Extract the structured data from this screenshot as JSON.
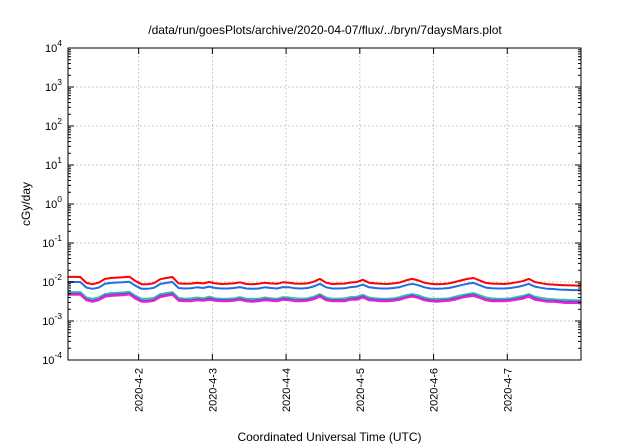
{
  "chart_data": {
    "type": "line",
    "title": "/data/run/goesPlots/archive/2020-04-07/flux/../bryn/7daysMars.plot",
    "xlabel": "Coordinated Universal Time (UTC)",
    "ylabel": "cGy/day",
    "yscale": "log",
    "ylim": [
      0.0001,
      10000
    ],
    "yticks": [
      {
        "value": 10000,
        "base": "10",
        "exp": "4"
      },
      {
        "value": 1000,
        "base": "10",
        "exp": "3"
      },
      {
        "value": 100,
        "base": "10",
        "exp": "2"
      },
      {
        "value": 10,
        "base": "10",
        "exp": "1"
      },
      {
        "value": 1,
        "base": "10",
        "exp": "0"
      },
      {
        "value": 0.1,
        "base": "10",
        "exp": "-1"
      },
      {
        "value": 0.01,
        "base": "10",
        "exp": "-2"
      },
      {
        "value": 0.001,
        "base": "10",
        "exp": "-3"
      },
      {
        "value": 0.0001,
        "base": "10",
        "exp": "-4"
      }
    ],
    "xlim": [
      "2020-04-01T01:00",
      "2020-04-08T00:00"
    ],
    "xticks": [
      "2020-4-2",
      "2020-4-3",
      "2020-4-4",
      "2020-4-5",
      "2020-4-6",
      "2020-4-7"
    ],
    "grid": true,
    "legend": "none",
    "x": [
      "2020-04-01T01:00",
      "2020-04-01T03:00",
      "2020-04-01T05:00",
      "2020-04-01T07:00",
      "2020-04-01T09:00",
      "2020-04-01T11:00",
      "2020-04-01T13:00",
      "2020-04-01T15:00",
      "2020-04-01T17:00",
      "2020-04-01T19:00",
      "2020-04-01T21:00",
      "2020-04-01T23:00",
      "2020-04-02T01:00",
      "2020-04-02T03:00",
      "2020-04-02T05:00",
      "2020-04-02T07:00",
      "2020-04-02T09:00",
      "2020-04-02T11:00",
      "2020-04-02T13:00",
      "2020-04-02T15:00",
      "2020-04-02T17:00",
      "2020-04-02T19:00",
      "2020-04-02T21:00",
      "2020-04-02T23:00",
      "2020-04-03T01:00",
      "2020-04-03T03:00",
      "2020-04-03T05:00",
      "2020-04-03T07:00",
      "2020-04-03T09:00",
      "2020-04-03T11:00",
      "2020-04-03T13:00",
      "2020-04-03T15:00",
      "2020-04-03T17:00",
      "2020-04-03T19:00",
      "2020-04-03T21:00",
      "2020-04-03T23:00",
      "2020-04-04T01:00",
      "2020-04-04T03:00",
      "2020-04-04T05:00",
      "2020-04-04T07:00",
      "2020-04-04T09:00",
      "2020-04-04T11:00",
      "2020-04-04T13:00",
      "2020-04-04T15:00",
      "2020-04-04T17:00",
      "2020-04-04T19:00",
      "2020-04-04T21:00",
      "2020-04-04T23:00",
      "2020-04-05T01:00",
      "2020-04-05T03:00",
      "2020-04-05T05:00",
      "2020-04-05T07:00",
      "2020-04-05T09:00",
      "2020-04-05T11:00",
      "2020-04-05T13:00",
      "2020-04-05T15:00",
      "2020-04-05T17:00",
      "2020-04-05T19:00",
      "2020-04-05T21:00",
      "2020-04-05T23:00",
      "2020-04-06T01:00",
      "2020-04-06T03:00",
      "2020-04-06T05:00",
      "2020-04-06T07:00",
      "2020-04-06T09:00",
      "2020-04-06T11:00",
      "2020-04-06T13:00",
      "2020-04-06T15:00",
      "2020-04-06T17:00",
      "2020-04-06T19:00",
      "2020-04-06T21:00",
      "2020-04-06T23:00",
      "2020-04-07T01:00",
      "2020-04-07T03:00",
      "2020-04-07T05:00",
      "2020-04-07T07:00",
      "2020-04-07T09:00",
      "2020-04-07T11:00",
      "2020-04-07T13:00",
      "2020-04-07T15:00",
      "2020-04-07T17:00",
      "2020-04-07T19:00",
      "2020-04-07T21:00",
      "2020-04-07T23:00",
      "2020-04-08T00:00"
    ],
    "series": [
      {
        "color": "#ff0000",
        "values": [
          0.0135,
          0.0135,
          0.0134,
          0.0095,
          0.0088,
          0.0096,
          0.012,
          0.0127,
          0.013,
          0.0133,
          0.0137,
          0.0105,
          0.0088,
          0.0088,
          0.0093,
          0.0118,
          0.0127,
          0.0134,
          0.0092,
          0.009,
          0.0091,
          0.0096,
          0.0092,
          0.01,
          0.0092,
          0.0089,
          0.009,
          0.0092,
          0.0098,
          0.0089,
          0.0088,
          0.009,
          0.0096,
          0.0092,
          0.009,
          0.0098,
          0.0096,
          0.0091,
          0.009,
          0.0092,
          0.0102,
          0.012,
          0.0096,
          0.0089,
          0.009,
          0.0091,
          0.0097,
          0.01,
          0.0114,
          0.0096,
          0.0092,
          0.009,
          0.0089,
          0.0092,
          0.0097,
          0.011,
          0.012,
          0.011,
          0.0096,
          0.009,
          0.0088,
          0.0089,
          0.0092,
          0.01,
          0.011,
          0.012,
          0.0127,
          0.011,
          0.0095,
          0.0091,
          0.009,
          0.0089,
          0.0092,
          0.0098,
          0.0105,
          0.012,
          0.01,
          0.0093,
          0.0088,
          0.0086,
          0.0084,
          0.0083,
          0.0082,
          0.0081,
          0.008
        ]
      },
      {
        "color": "#1f6fe0",
        "values": [
          0.01,
          0.01,
          0.01,
          0.0072,
          0.0067,
          0.0072,
          0.009,
          0.0095,
          0.0097,
          0.0099,
          0.0101,
          0.008,
          0.0067,
          0.0067,
          0.0071,
          0.0089,
          0.0095,
          0.01,
          0.007,
          0.0068,
          0.0069,
          0.0073,
          0.007,
          0.0076,
          0.007,
          0.0068,
          0.0068,
          0.007,
          0.0074,
          0.0068,
          0.0067,
          0.0068,
          0.0073,
          0.007,
          0.0068,
          0.0074,
          0.0073,
          0.0069,
          0.0068,
          0.007,
          0.0077,
          0.009,
          0.0073,
          0.0068,
          0.0068,
          0.0069,
          0.0074,
          0.0076,
          0.0086,
          0.0073,
          0.007,
          0.0068,
          0.0068,
          0.007,
          0.0074,
          0.0083,
          0.009,
          0.0083,
          0.0073,
          0.0068,
          0.0067,
          0.0068,
          0.007,
          0.0076,
          0.0083,
          0.009,
          0.0095,
          0.0083,
          0.0072,
          0.0069,
          0.0068,
          0.0068,
          0.007,
          0.0074,
          0.008,
          0.009,
          0.0076,
          0.0071,
          0.0067,
          0.0066,
          0.0064,
          0.0063,
          0.0062,
          0.0062,
          0.0061
        ]
      },
      {
        "color": "#2ec4a8",
        "values": [
          0.0055,
          0.0055,
          0.0055,
          0.004,
          0.0037,
          0.004,
          0.0049,
          0.0052,
          0.0053,
          0.0054,
          0.0056,
          0.0044,
          0.0037,
          0.0037,
          0.0039,
          0.0049,
          0.0052,
          0.0055,
          0.0039,
          0.0037,
          0.0038,
          0.004,
          0.0038,
          0.0042,
          0.0038,
          0.0037,
          0.0037,
          0.0038,
          0.0041,
          0.0037,
          0.0037,
          0.0037,
          0.004,
          0.0038,
          0.0037,
          0.0041,
          0.004,
          0.0038,
          0.0037,
          0.0038,
          0.0042,
          0.0049,
          0.004,
          0.0037,
          0.0037,
          0.0038,
          0.0041,
          0.0042,
          0.0047,
          0.004,
          0.0038,
          0.0037,
          0.0037,
          0.0038,
          0.0041,
          0.0046,
          0.0049,
          0.0046,
          0.004,
          0.0037,
          0.0037,
          0.0037,
          0.0038,
          0.0042,
          0.0046,
          0.0049,
          0.0052,
          0.0046,
          0.004,
          0.0038,
          0.0037,
          0.0037,
          0.0038,
          0.0041,
          0.0044,
          0.0049,
          0.0042,
          0.0039,
          0.0037,
          0.0036,
          0.0035,
          0.0035,
          0.0034,
          0.0034,
          0.0034
        ]
      },
      {
        "color": "#7a3fd6",
        "values": [
          0.005,
          0.005,
          0.005,
          0.0036,
          0.0033,
          0.0036,
          0.0045,
          0.0047,
          0.0048,
          0.0049,
          0.0051,
          0.004,
          0.0033,
          0.0033,
          0.0035,
          0.0044,
          0.0047,
          0.005,
          0.0035,
          0.0034,
          0.0034,
          0.0036,
          0.0035,
          0.0038,
          0.0035,
          0.0034,
          0.0034,
          0.0035,
          0.0037,
          0.0034,
          0.0033,
          0.0034,
          0.0036,
          0.0035,
          0.0034,
          0.0037,
          0.0036,
          0.0034,
          0.0034,
          0.0035,
          0.0038,
          0.0045,
          0.0036,
          0.0034,
          0.0034,
          0.0034,
          0.0037,
          0.0038,
          0.0043,
          0.0036,
          0.0035,
          0.0034,
          0.0034,
          0.0035,
          0.0037,
          0.0041,
          0.0045,
          0.0041,
          0.0036,
          0.0034,
          0.0033,
          0.0034,
          0.0035,
          0.0038,
          0.0041,
          0.0045,
          0.0047,
          0.0041,
          0.0036,
          0.0034,
          0.0034,
          0.0034,
          0.0035,
          0.0037,
          0.004,
          0.0045,
          0.0038,
          0.0035,
          0.0033,
          0.0033,
          0.0032,
          0.0031,
          0.0031,
          0.0031,
          0.003
        ]
      },
      {
        "color": "#ee1fd6",
        "values": [
          0.0047,
          0.0047,
          0.0047,
          0.0034,
          0.0031,
          0.0034,
          0.0042,
          0.0044,
          0.0045,
          0.0046,
          0.0048,
          0.0037,
          0.0031,
          0.0031,
          0.0033,
          0.0041,
          0.0044,
          0.0047,
          0.0033,
          0.0032,
          0.0032,
          0.0034,
          0.0033,
          0.0035,
          0.0033,
          0.0032,
          0.0032,
          0.0033,
          0.0035,
          0.0032,
          0.0031,
          0.0032,
          0.0034,
          0.0033,
          0.0032,
          0.0035,
          0.0034,
          0.0032,
          0.0032,
          0.0033,
          0.0036,
          0.0042,
          0.0034,
          0.0032,
          0.0032,
          0.0032,
          0.0035,
          0.0035,
          0.004,
          0.0034,
          0.0033,
          0.0032,
          0.0032,
          0.0033,
          0.0035,
          0.0039,
          0.0042,
          0.0039,
          0.0034,
          0.0032,
          0.0031,
          0.0032,
          0.0033,
          0.0035,
          0.0039,
          0.0042,
          0.0044,
          0.0039,
          0.0034,
          0.0032,
          0.0032,
          0.0032,
          0.0033,
          0.0035,
          0.0037,
          0.0042,
          0.0035,
          0.0033,
          0.0031,
          0.0031,
          0.003,
          0.0029,
          0.0029,
          0.0029,
          0.0028
        ]
      }
    ]
  }
}
